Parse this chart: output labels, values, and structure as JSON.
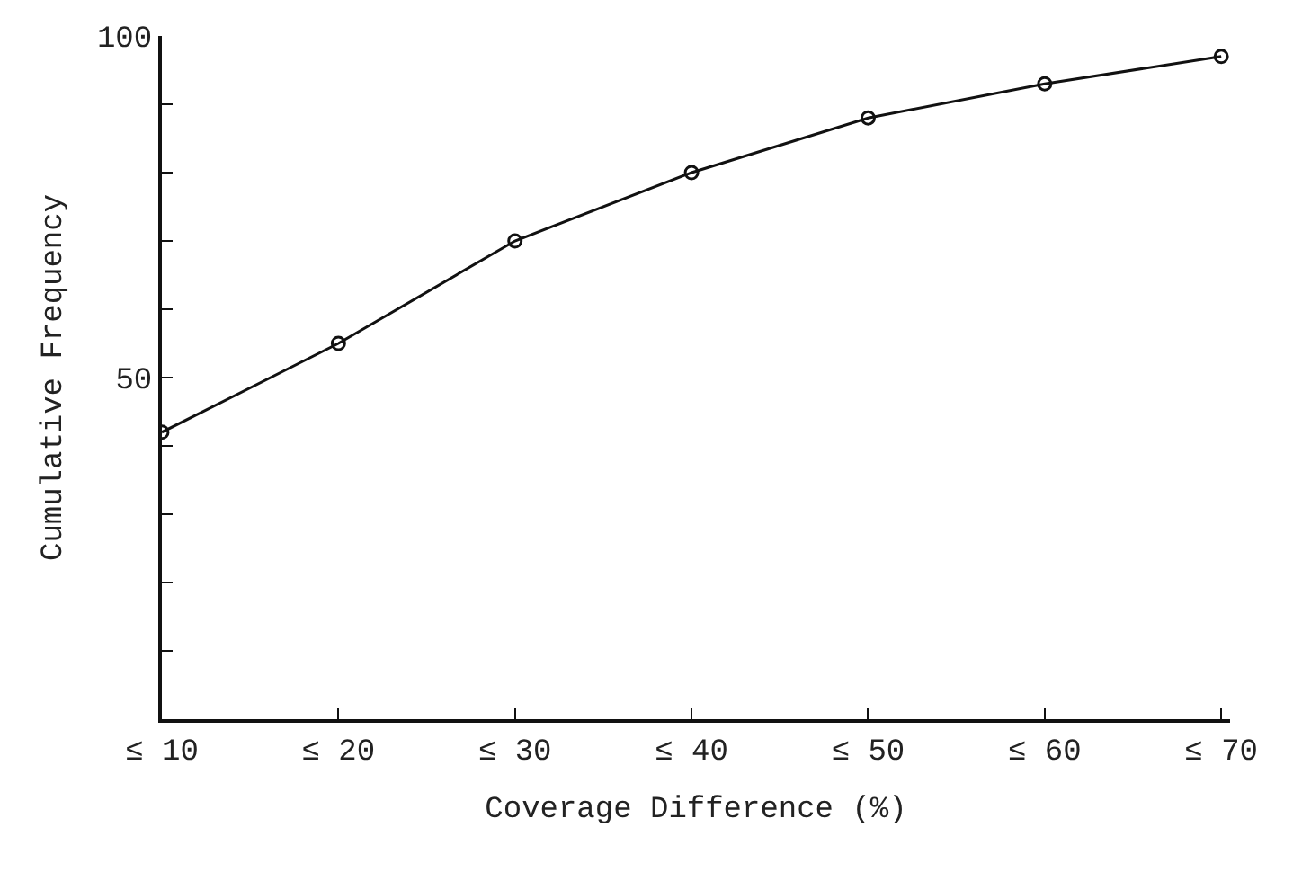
{
  "chart_data": {
    "type": "line",
    "xlabel": "Coverage Difference (%)",
    "ylabel": "Cumulative Frequency",
    "categories": [
      "≤ 10",
      "≤ 20",
      "≤ 30",
      "≤ 40",
      "≤ 50",
      "≤ 60",
      "≤ 70"
    ],
    "series": [
      {
        "color": "#111111",
        "values": [
          42,
          55,
          70,
          80,
          88,
          93,
          97
        ]
      }
    ],
    "ylim": [
      0,
      100
    ],
    "yticks": [
      {
        "value": 10,
        "label": null
      },
      {
        "value": 20,
        "label": null
      },
      {
        "value": 30,
        "label": null
      },
      {
        "value": 40,
        "label": null
      },
      50,
      {
        "value": 60,
        "label": null
      },
      {
        "value": 70,
        "label": null
      },
      {
        "value": 80,
        "label": null
      },
      {
        "value": 90,
        "label": null
      },
      100
    ],
    "marker": "circle",
    "line_style": "solid"
  }
}
